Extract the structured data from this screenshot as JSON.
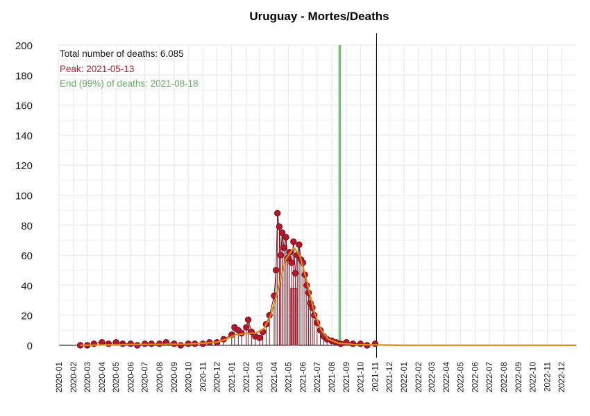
{
  "chart_data": {
    "type": "line",
    "title": "Uruguay - Mortes/Deaths",
    "xlabel": "",
    "ylabel": "",
    "ylim": [
      0,
      200
    ],
    "y_ticks": [
      "0",
      "20",
      "40",
      "60",
      "80",
      "100",
      "120",
      "140",
      "160",
      "180",
      "200"
    ],
    "x_tick_labels": [
      "2020-01",
      "2020-02",
      "2020-03",
      "2020-04",
      "2020-05",
      "2020-06",
      "2020-07",
      "2020-08",
      "2020-09",
      "2020-10",
      "2020-11",
      "2020-12",
      "2021-01",
      "2021-02",
      "2021-03",
      "2021-04",
      "2021-05",
      "2021-06",
      "2021-07",
      "2021-08",
      "2021-09",
      "2021-10",
      "2021-11",
      "2021-12",
      "2022-01",
      "2022-02",
      "2022-03",
      "2022-04",
      "2022-05",
      "2022-06",
      "2022-07",
      "2022-08",
      "2022-09",
      "2022-10",
      "2022-11",
      "2022-12"
    ],
    "grid": true,
    "annotations": {
      "total": "Total number of deaths: 6.085",
      "peak": "Peak: 2021-05-13",
      "end": "End (99%) of deaths: 2021-08-18"
    },
    "peak_bar": {
      "x_from": "2021-05-06",
      "x_to": "2021-05-20",
      "value": 38
    },
    "end_line_x": "2021-08-18",
    "cutoff_line_x": "2021-11-04",
    "colors": {
      "points": "#b2182b",
      "point_edge": "#7a0f1c",
      "smooth": "#e08a1a",
      "peak_bar": "#d46a78",
      "peak_text": "#b2182b",
      "end_line": "#7fb77e",
      "end_text": "#6aa86a",
      "cutoff": "#000000",
      "grid": "#e6e6e6"
    },
    "series": [
      {
        "name": "daily",
        "values": [
          {
            "x": "2020-02-15",
            "y": 0
          },
          {
            "x": "2020-03-01",
            "y": 0
          },
          {
            "x": "2020-03-15",
            "y": 1
          },
          {
            "x": "2020-04-01",
            "y": 2
          },
          {
            "x": "2020-04-15",
            "y": 1
          },
          {
            "x": "2020-05-01",
            "y": 2
          },
          {
            "x": "2020-05-15",
            "y": 1
          },
          {
            "x": "2020-06-01",
            "y": 1
          },
          {
            "x": "2020-06-15",
            "y": 0
          },
          {
            "x": "2020-07-01",
            "y": 1
          },
          {
            "x": "2020-07-15",
            "y": 1
          },
          {
            "x": "2020-08-01",
            "y": 1
          },
          {
            "x": "2020-08-15",
            "y": 2
          },
          {
            "x": "2020-09-01",
            "y": 1
          },
          {
            "x": "2020-09-15",
            "y": 0
          },
          {
            "x": "2020-10-01",
            "y": 1
          },
          {
            "x": "2020-10-15",
            "y": 1
          },
          {
            "x": "2020-11-01",
            "y": 1
          },
          {
            "x": "2020-11-15",
            "y": 2
          },
          {
            "x": "2020-12-01",
            "y": 2
          },
          {
            "x": "2020-12-15",
            "y": 4
          },
          {
            "x": "2021-01-01",
            "y": 7
          },
          {
            "x": "2021-01-07",
            "y": 12
          },
          {
            "x": "2021-01-15",
            "y": 10
          },
          {
            "x": "2021-01-22",
            "y": 8
          },
          {
            "x": "2021-02-01",
            "y": 12
          },
          {
            "x": "2021-02-05",
            "y": 17
          },
          {
            "x": "2021-02-12",
            "y": 9
          },
          {
            "x": "2021-02-20",
            "y": 6
          },
          {
            "x": "2021-03-01",
            "y": 5
          },
          {
            "x": "2021-03-08",
            "y": 9
          },
          {
            "x": "2021-03-15",
            "y": 14
          },
          {
            "x": "2021-03-22",
            "y": 20
          },
          {
            "x": "2021-04-01",
            "y": 33
          },
          {
            "x": "2021-04-05",
            "y": 50
          },
          {
            "x": "2021-04-08",
            "y": 88
          },
          {
            "x": "2021-04-12",
            "y": 79
          },
          {
            "x": "2021-04-15",
            "y": 60
          },
          {
            "x": "2021-04-18",
            "y": 75
          },
          {
            "x": "2021-04-22",
            "y": 65
          },
          {
            "x": "2021-04-26",
            "y": 72
          },
          {
            "x": "2021-04-30",
            "y": 58
          },
          {
            "x": "2021-05-04",
            "y": 62
          },
          {
            "x": "2021-05-08",
            "y": 55
          },
          {
            "x": "2021-05-12",
            "y": 69
          },
          {
            "x": "2021-05-16",
            "y": 48
          },
          {
            "x": "2021-05-20",
            "y": 60
          },
          {
            "x": "2021-05-24",
            "y": 67
          },
          {
            "x": "2021-05-28",
            "y": 57
          },
          {
            "x": "2021-06-01",
            "y": 55
          },
          {
            "x": "2021-06-05",
            "y": 47
          },
          {
            "x": "2021-06-09",
            "y": 40
          },
          {
            "x": "2021-06-13",
            "y": 35
          },
          {
            "x": "2021-06-17",
            "y": 28
          },
          {
            "x": "2021-06-21",
            "y": 25
          },
          {
            "x": "2021-06-25",
            "y": 20
          },
          {
            "x": "2021-07-01",
            "y": 15
          },
          {
            "x": "2021-07-08",
            "y": 10
          },
          {
            "x": "2021-07-15",
            "y": 6
          },
          {
            "x": "2021-07-22",
            "y": 4
          },
          {
            "x": "2021-08-01",
            "y": 3
          },
          {
            "x": "2021-08-10",
            "y": 2
          },
          {
            "x": "2021-08-20",
            "y": 1
          },
          {
            "x": "2021-09-01",
            "y": 2
          },
          {
            "x": "2021-09-15",
            "y": 1
          },
          {
            "x": "2021-10-01",
            "y": 1
          },
          {
            "x": "2021-10-15",
            "y": 0
          },
          {
            "x": "2021-11-01",
            "y": 1
          }
        ]
      },
      {
        "name": "smoothed",
        "values": [
          {
            "x": "2020-02-15",
            "y": 0
          },
          {
            "x": "2020-06-01",
            "y": 0.5
          },
          {
            "x": "2020-10-01",
            "y": 0.8
          },
          {
            "x": "2020-12-01",
            "y": 2
          },
          {
            "x": "2020-12-20",
            "y": 4
          },
          {
            "x": "2021-01-10",
            "y": 7
          },
          {
            "x": "2021-02-01",
            "y": 8
          },
          {
            "x": "2021-02-20",
            "y": 8
          },
          {
            "x": "2021-03-10",
            "y": 11
          },
          {
            "x": "2021-03-25",
            "y": 20
          },
          {
            "x": "2021-04-10",
            "y": 38
          },
          {
            "x": "2021-04-25",
            "y": 57
          },
          {
            "x": "2021-05-13",
            "y": 65
          },
          {
            "x": "2021-05-25",
            "y": 60
          },
          {
            "x": "2021-06-10",
            "y": 42
          },
          {
            "x": "2021-06-25",
            "y": 22
          },
          {
            "x": "2021-07-10",
            "y": 10
          },
          {
            "x": "2021-07-25",
            "y": 4
          },
          {
            "x": "2021-08-15",
            "y": 1.5
          },
          {
            "x": "2021-09-15",
            "y": 0.5
          },
          {
            "x": "2021-11-04",
            "y": 0.3
          },
          {
            "x": "2022-01-01",
            "y": 0
          },
          {
            "x": "2022-12-31",
            "y": 0
          }
        ]
      }
    ]
  }
}
